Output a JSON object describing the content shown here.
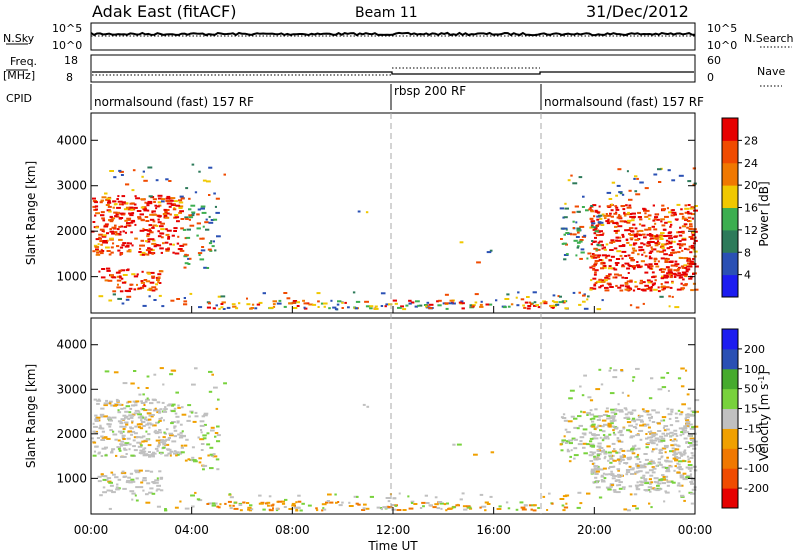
{
  "header": {
    "station": "Adak East (fitACF)",
    "beam": "Beam 11",
    "date": "31/Dec/2012"
  },
  "top_panels": {
    "nsky_label": "N.Sky",
    "nsky_ticks": [
      "10^5",
      "10^0"
    ],
    "nsearch_label": "N.Search",
    "nsearch_ticks": [
      "10^5",
      "10^0"
    ],
    "freq_label": "Freq.",
    "freq_unit": "[MHz]",
    "freq_ticks": [
      "18",
      "8"
    ],
    "nave_label": "Nave",
    "nave_ticks": [
      "60",
      "0"
    ],
    "cpid_label": "CPID"
  },
  "cpid_segments": [
    {
      "label": "normalsound (fast) 157 RF",
      "start_hour": 0,
      "end_hour": 12
    },
    {
      "label": "rbsp 200 RF",
      "start_hour": 12,
      "end_hour": 18
    },
    {
      "label": "normalsound (fast) 157 RF",
      "start_hour": 18,
      "end_hour": 24
    }
  ],
  "chart_data": [
    {
      "type": "heatmap",
      "panel": "power",
      "ylabel": "Slant Range [km]",
      "yticks": [
        1000,
        2000,
        3000,
        4000
      ],
      "ylim": [
        200,
        4600
      ],
      "xlim": [
        0,
        24
      ],
      "colorbar": {
        "label": "Power [dB]",
        "ticks": [
          "28",
          "24",
          "20",
          "16",
          "12",
          "8",
          "4"
        ],
        "colors": [
          "#1c1cf0",
          "#2a50b4",
          "#2d7a5a",
          "#3cae50",
          "#f0c800",
          "#f07800",
          "#f04b00",
          "#e60000"
        ],
        "range": [
          0,
          32
        ]
      }
    },
    {
      "type": "heatmap",
      "panel": "velocity",
      "ylabel": "Slant Range [km]",
      "yticks": [
        1000,
        2000,
        3000,
        4000
      ],
      "ylim": [
        200,
        4600
      ],
      "xlim": [
        0,
        24
      ],
      "colorbar": {
        "label": "Velocity [m s",
        "label_sup": "-1",
        "label_close": "]",
        "ticks": [
          "200",
          "100",
          "50",
          "15",
          "-15",
          "-50",
          "-100",
          "-200"
        ],
        "colors": [
          "#e60000",
          "#f04b00",
          "#f07800",
          "#f0a000",
          "#c0c0c0",
          "#78d23c",
          "#46aa2d",
          "#2a50b4",
          "#1c1cf0"
        ]
      }
    }
  ],
  "xaxis": {
    "label": "Time UT",
    "ticks": [
      "00:00",
      "04:00",
      "08:00",
      "12:00",
      "16:00",
      "20:00",
      "00:00"
    ],
    "tick_hours": [
      0,
      4,
      8,
      12,
      16,
      20,
      24
    ]
  }
}
